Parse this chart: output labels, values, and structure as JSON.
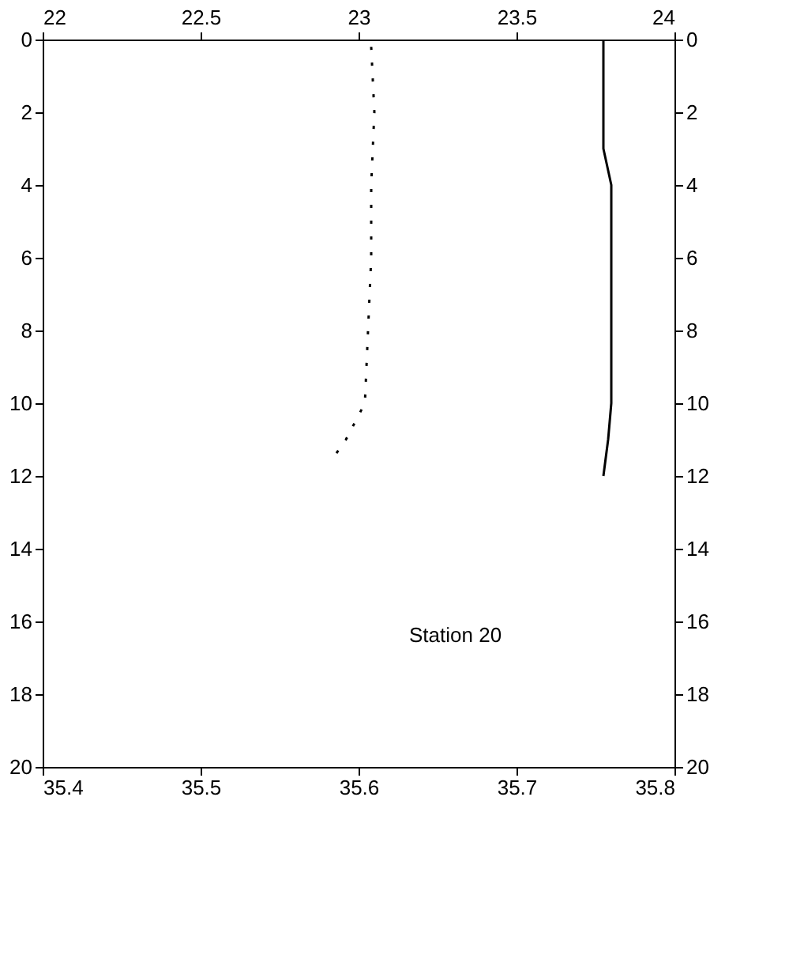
{
  "chart_data": {
    "type": "line",
    "annotations": [
      "Station 20"
    ],
    "series": [
      {
        "color": "#000000",
        "line_style": "solid",
        "x": [
          35.755,
          35.755,
          35.76,
          35.76,
          35.76,
          35.76,
          35.758,
          35.755
        ],
        "values": [
          0,
          3,
          4,
          6,
          8,
          10,
          11,
          12
        ]
      },
      {
        "color": "#000000",
        "line_style": "dotted",
        "axis": "x2",
        "x": [
          23.04,
          23.05,
          23.04,
          23.04,
          23.03,
          23.02,
          22.96,
          22.92
        ],
        "values": [
          0.2,
          2,
          4,
          6,
          8,
          10,
          11,
          11.5
        ]
      }
    ],
    "xlim": [
      35.4,
      35.8
    ],
    "xticks": [
      35.4,
      35.5,
      35.6,
      35.7,
      35.8
    ],
    "x2lim": [
      22,
      24
    ],
    "x2ticks": [
      22,
      22.5,
      23,
      23.5,
      24
    ],
    "ylim": [
      20,
      0
    ],
    "yticks": [
      0,
      2,
      4,
      6,
      8,
      10,
      12,
      14,
      16,
      18,
      20
    ],
    "y2lim": [
      20,
      0
    ],
    "y2ticks": [
      0,
      2,
      4,
      6,
      8,
      10,
      12,
      14,
      16,
      18,
      20
    ],
    "grid": false
  }
}
